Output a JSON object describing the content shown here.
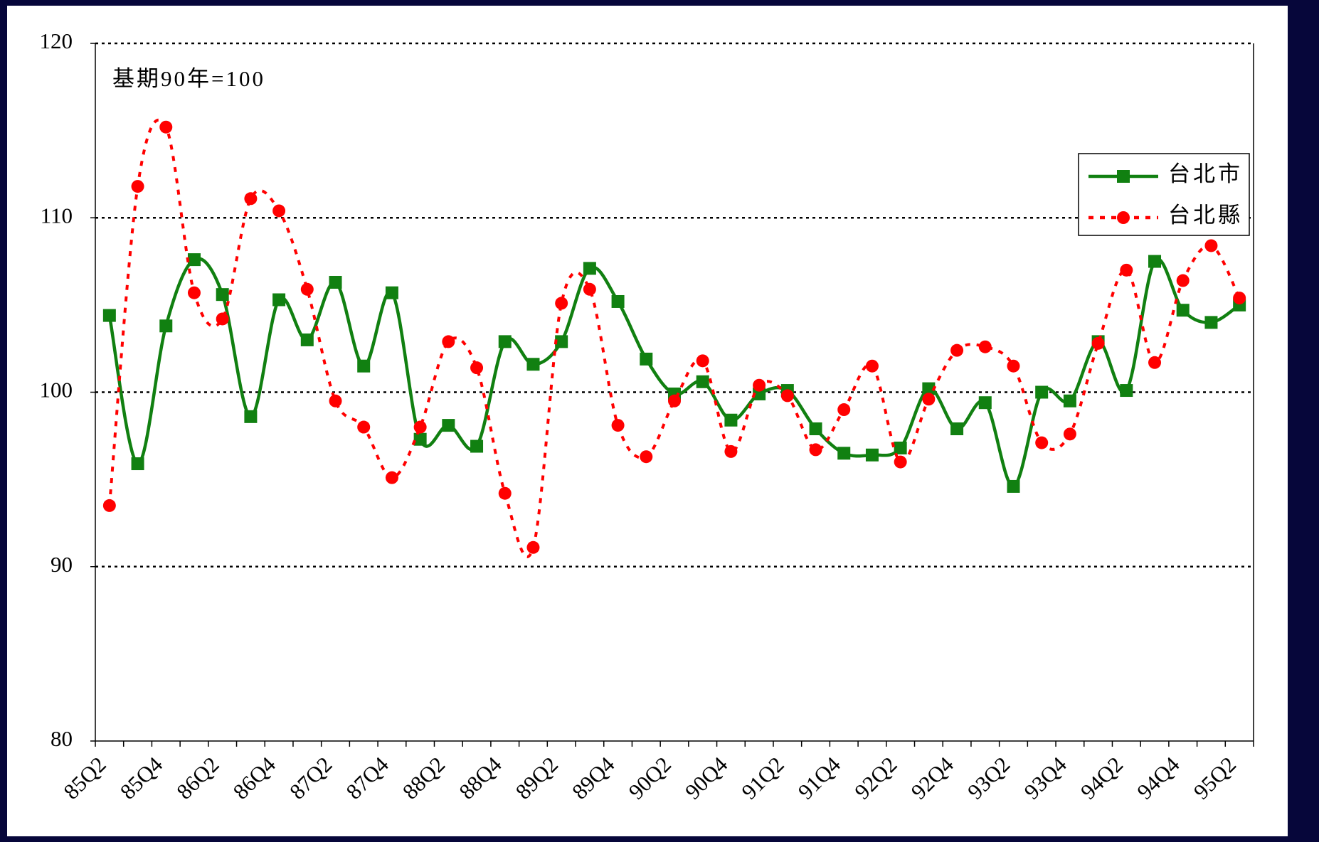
{
  "chart_data": {
    "type": "line",
    "annotation": "基期90年=100",
    "categories": [
      "85Q2",
      null,
      "85Q4",
      null,
      "86Q2",
      null,
      "86Q4",
      null,
      "87Q2",
      null,
      "87Q4",
      null,
      "88Q2",
      null,
      "88Q4",
      null,
      "89Q2",
      null,
      "89Q4",
      null,
      "90Q2",
      null,
      "90Q4",
      null,
      "91Q2",
      null,
      "91Q4",
      null,
      "92Q2",
      null,
      "92Q4",
      null,
      "93Q2",
      null,
      "93Q4",
      null,
      "94Q2",
      null,
      "94Q4",
      null,
      "95Q2"
    ],
    "series": [
      {
        "name": "台北市",
        "color": "#118011",
        "marker": "square",
        "dashed": false,
        "values": [
          104.4,
          95.9,
          103.8,
          107.6,
          105.6,
          98.6,
          105.3,
          103.0,
          106.3,
          101.5,
          105.7,
          97.3,
          98.1,
          96.9,
          102.9,
          101.6,
          102.9,
          107.1,
          105.2,
          101.9,
          99.9,
          100.6,
          98.4,
          99.9,
          100.1,
          97.9,
          96.5,
          96.4,
          96.8,
          100.2,
          97.9,
          99.4,
          94.6,
          100.0,
          99.5,
          102.9,
          100.1,
          107.5,
          104.7,
          104.0,
          105.0
        ]
      },
      {
        "name": "台北縣",
        "color": "#ff0000",
        "marker": "circle",
        "dashed": true,
        "values": [
          93.5,
          111.8,
          115.2,
          105.7,
          104.2,
          111.1,
          110.4,
          105.9,
          99.5,
          98.0,
          95.1,
          98.0,
          102.9,
          101.4,
          94.2,
          91.1,
          105.1,
          105.9,
          98.1,
          96.3,
          99.5,
          101.8,
          96.6,
          100.4,
          99.8,
          96.7,
          99.0,
          101.5,
          96.0,
          99.6,
          102.4,
          102.6,
          101.5,
          97.1,
          97.6,
          102.8,
          107.0,
          101.7,
          106.4,
          108.4,
          105.4
        ]
      }
    ],
    "ylim": [
      80,
      120
    ],
    "yticks": [
      80,
      90,
      100,
      110,
      120
    ],
    "grid": true,
    "legend": "upper right"
  }
}
